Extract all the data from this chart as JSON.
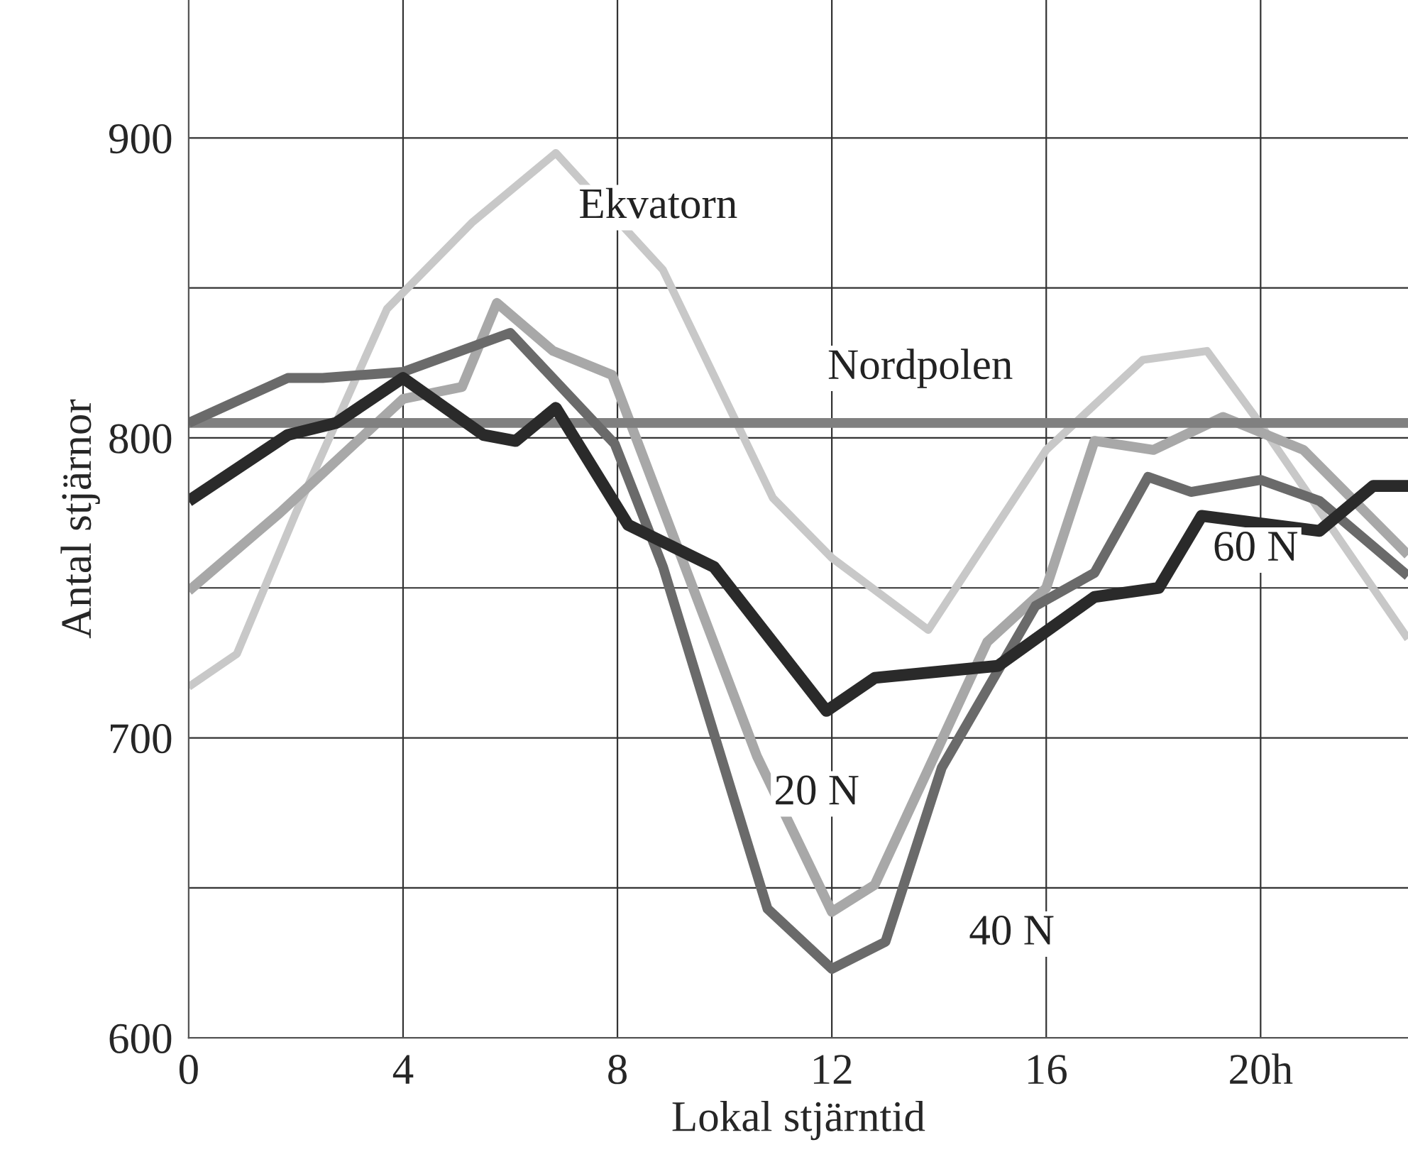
{
  "chart_data": {
    "type": "line",
    "xlabel": "Lokal stjärntid",
    "ylabel": "Antal stjärnor",
    "xlim": [
      0,
      22.75
    ],
    "ylim": [
      600,
      946
    ],
    "xticks": [
      0,
      4,
      8,
      12,
      16,
      {
        "value": 20,
        "label": "20h"
      }
    ],
    "yticks": [
      600,
      {
        "value": 650,
        "label": null
      },
      700,
      {
        "value": 750,
        "label": null
      },
      800,
      {
        "value": 850,
        "label": null
      },
      900
    ],
    "grid": true,
    "line_style": "solid",
    "marker": "none",
    "series": [
      {
        "name": "Ekvatorn",
        "color": "#c8c8c8",
        "x": [
          0,
          0.9,
          2.0,
          3.7,
          5.3,
          6.85,
          8.85,
          10.9,
          12,
          13.8,
          16,
          17.8,
          19,
          19.9,
          22.75
        ],
        "values": [
          717,
          728,
          775,
          843,
          872,
          895,
          856,
          780,
          760,
          736,
          796,
          826,
          829,
          807,
          733
        ]
      },
      {
        "name": "20 N",
        "color": "#a8a8a8",
        "x": [
          0,
          1.7,
          4,
          5.1,
          5.75,
          6.8,
          7.9,
          10.6,
          12,
          12.8,
          14.9,
          16,
          16.9,
          18,
          19.3,
          20.8,
          22.75
        ],
        "values": [
          749,
          775,
          813,
          817,
          845,
          829,
          821,
          694,
          642,
          651,
          732,
          750,
          799,
          796,
          807,
          796,
          761
        ]
      },
      {
        "name": "Nordpolen",
        "color": "#808080",
        "x": [
          0,
          22.75
        ],
        "values": [
          805,
          805
        ]
      },
      {
        "name": "40 N",
        "color": "#6a6a6a",
        "x": [
          0,
          1.85,
          2.5,
          4,
          6.0,
          7.95,
          8.85,
          10.8,
          12,
          13,
          14.05,
          15.8,
          16.9,
          17.9,
          18.7,
          20,
          21.1,
          22.75
        ],
        "values": [
          805,
          820,
          820,
          822,
          835,
          798,
          757,
          643,
          623,
          632,
          690,
          744,
          755,
          787,
          782,
          786,
          779,
          754
        ]
      },
      {
        "name": "60 N",
        "color": "#2a2a2a",
        "x": [
          0,
          1.85,
          2.75,
          4,
          5.5,
          6.1,
          6.85,
          8.2,
          9.8,
          11.9,
          12.8,
          15.1,
          16.9,
          18.1,
          18.9,
          21.1,
          22.1,
          22.75
        ],
        "values": [
          779,
          801,
          805,
          820,
          801,
          799,
          810,
          771,
          757,
          709,
          720,
          724,
          747,
          750,
          774,
          769,
          784,
          784
        ]
      }
    ]
  }
}
